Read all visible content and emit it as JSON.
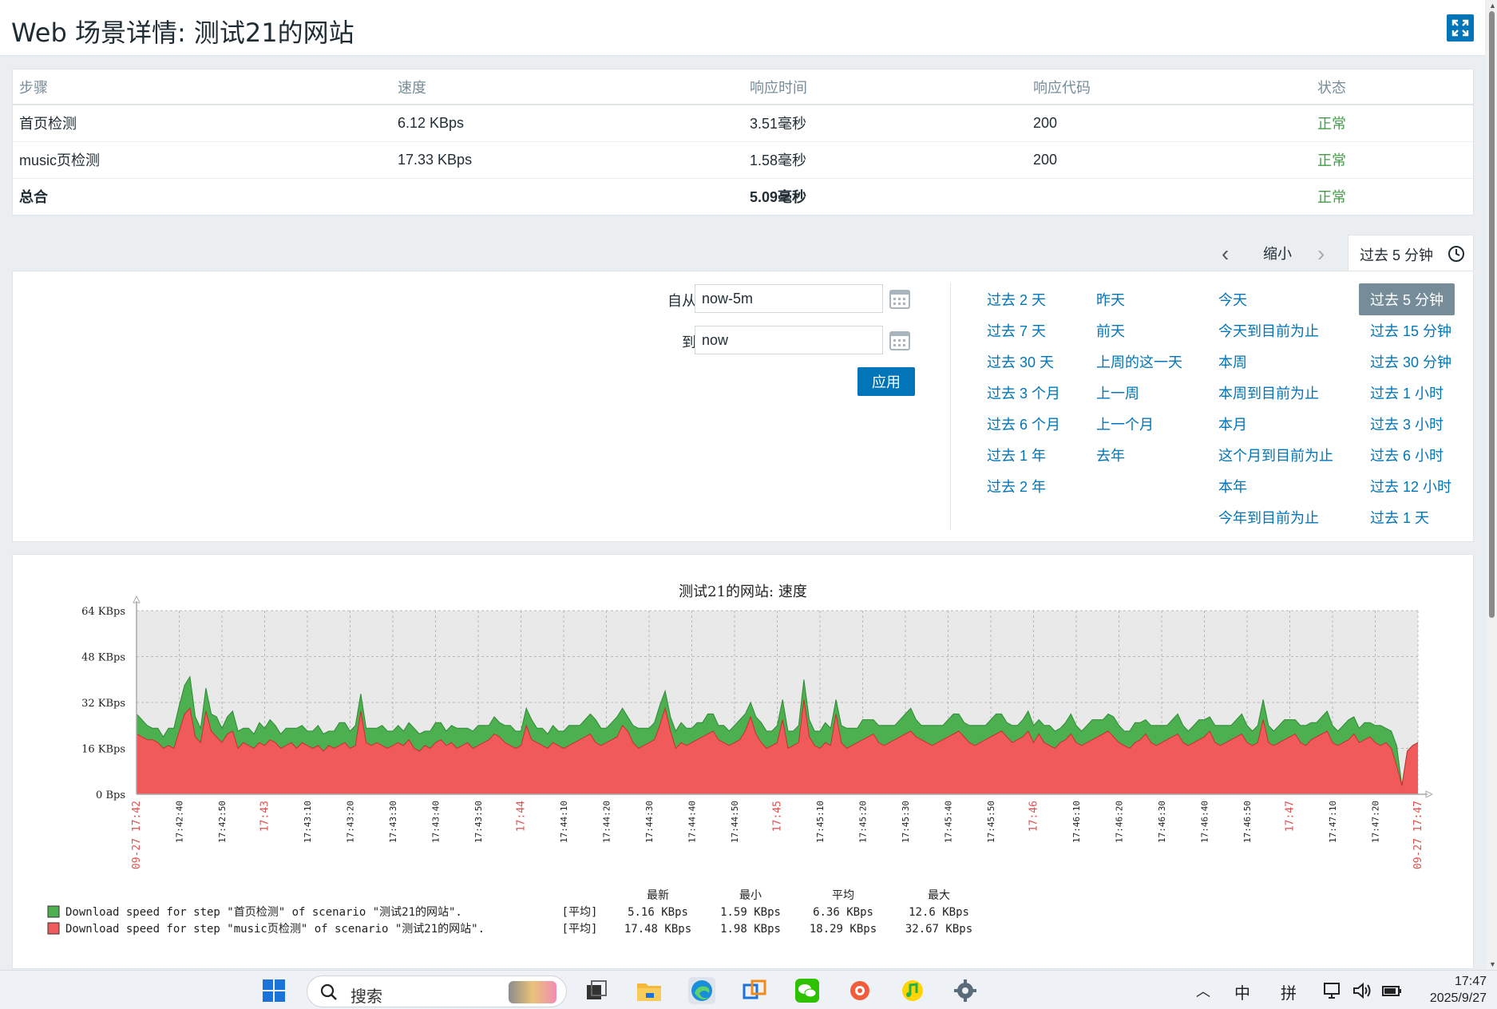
{
  "header": {
    "title": "Web 场景详情: 测试21的网站"
  },
  "steps_table": {
    "columns": [
      "步骤",
      "速度",
      "响应时间",
      "响应代码",
      "状态"
    ],
    "rows": [
      {
        "step": "首页检测",
        "speed": "6.12 KBps",
        "time": "3.51毫秒",
        "code": "200",
        "status": "正常"
      },
      {
        "step": "music页检测",
        "speed": "17.33 KBps",
        "time": "1.58毫秒",
        "code": "200",
        "status": "正常"
      }
    ],
    "total": {
      "step": "总合",
      "speed": "",
      "time": "5.09毫秒",
      "code": "",
      "status": "正常"
    }
  },
  "time_nav": {
    "zoom_out": "缩小",
    "current": "过去 5 分钟"
  },
  "filter": {
    "from_label": "自从",
    "from_value": "now-5m",
    "to_label": "到",
    "to_value": "now",
    "apply": "应用"
  },
  "quick_ranges": {
    "col1": [
      "过去 2 天",
      "过去 7 天",
      "过去 30 天",
      "过去 3 个月",
      "过去 6 个月",
      "过去 1 年",
      "过去 2 年"
    ],
    "col2": [
      "昨天",
      "前天",
      "上周的这一天",
      "上一周",
      "上一个月",
      "去年"
    ],
    "col3": [
      "今天",
      "今天到目前为止",
      "本周",
      "本周到目前为止",
      "本月",
      "这个月到目前为止",
      "本年",
      "今年到目前为止"
    ],
    "col4": [
      "过去 5 分钟",
      "过去 15 分钟",
      "过去 30 分钟",
      "过去 1 小时",
      "过去 3 小时",
      "过去 6 小时",
      "过去 12 小时",
      "过去 1 天"
    ],
    "selected": "过去 5 分钟"
  },
  "chart_data": {
    "type": "area",
    "title": "测试21的网站: 速度",
    "y_ticks": [
      "0 Bps",
      "16 KBps",
      "32 KBps",
      "48 KBps",
      "64 KBps"
    ],
    "ylim": [
      0,
      64
    ],
    "x_ticks": [
      "09-27 17:42",
      "17:42:40",
      "17:42:50",
      "17:43",
      "17:43:10",
      "17:43:20",
      "17:43:30",
      "17:43:40",
      "17:43:50",
      "17:44",
      "17:44:10",
      "17:44:20",
      "17:44:30",
      "17:44:40",
      "17:44:50",
      "17:45",
      "17:45:10",
      "17:45:20",
      "17:45:30",
      "17:45:40",
      "17:45:50",
      "17:46",
      "17:46:10",
      "17:46:20",
      "17:46:30",
      "17:46:40",
      "17:46:50",
      "17:47",
      "17:47:10",
      "17:47:20",
      "09-27 17:47"
    ],
    "x_ticks_highlight": [
      0,
      3,
      9,
      15,
      21,
      27,
      30
    ],
    "grid": true,
    "stacked": true,
    "series": [
      {
        "name": "Download speed for step \"首页检测\" of scenario \"测试21的网站\".",
        "color": "#4caf50",
        "values": [
          7,
          6,
          5,
          4,
          5,
          4,
          6,
          7,
          9,
          10,
          11,
          7,
          5,
          8,
          6,
          7,
          5,
          6,
          7,
          6,
          5,
          6,
          5,
          7,
          6,
          7,
          6,
          5,
          6,
          5,
          7,
          6,
          5,
          6,
          7,
          6,
          5,
          6,
          8,
          7,
          6,
          7,
          6,
          5,
          6,
          5,
          7,
          6,
          5,
          6,
          5,
          6,
          7,
          6,
          5,
          6,
          7,
          6,
          5,
          6,
          7,
          6,
          5,
          6,
          7,
          6,
          5,
          6,
          5,
          6,
          7,
          6,
          5,
          6,
          7,
          5,
          6,
          5,
          6,
          5,
          6,
          7,
          6,
          5,
          6,
          7,
          8,
          6,
          5,
          6,
          7,
          6,
          5,
          6,
          7,
          6,
          5,
          6,
          7,
          6,
          5,
          6,
          7,
          6,
          5,
          6,
          5,
          7,
          6,
          5,
          6,
          5,
          6,
          7,
          6,
          5,
          6,
          7,
          6,
          5,
          6,
          7,
          6,
          5,
          6,
          7,
          6,
          5,
          6,
          7,
          6,
          5,
          6,
          7,
          6,
          5,
          7,
          6,
          5,
          6,
          7,
          6,
          5,
          6,
          7,
          8,
          6,
          5,
          6,
          7,
          6,
          5,
          6,
          7,
          6,
          5,
          6,
          7,
          6,
          5,
          6,
          7,
          6,
          5,
          6,
          5,
          6,
          7,
          6,
          5,
          6,
          7,
          6,
          5,
          6,
          7,
          6,
          5,
          6,
          7,
          6,
          5,
          6,
          7,
          6,
          5,
          6,
          7,
          6,
          5,
          6,
          7,
          6,
          5,
          6,
          7,
          6,
          5,
          6,
          7,
          6,
          5,
          6,
          7,
          6,
          5,
          6,
          7,
          6,
          5,
          6,
          7,
          6,
          5,
          6,
          7,
          6,
          5,
          6,
          7,
          6,
          5,
          6,
          7,
          6,
          5,
          6,
          7,
          6,
          5,
          6,
          5,
          6,
          7,
          5,
          6,
          7
        ],
        "legend": {
          "func": "[平均]",
          "last": "5.16 KBps",
          "min": "1.59 KBps",
          "avg": "6.36 KBps",
          "max": "12.6 KBps"
        }
      },
      {
        "name": "Download speed for step \"music页检测\" of scenario \"测试21的网站\".",
        "color": "#f05a5a",
        "values": [
          21,
          20,
          19,
          19,
          18,
          16,
          17,
          16,
          22,
          28,
          30,
          20,
          18,
          29,
          22,
          20,
          18,
          21,
          22,
          16,
          18,
          17,
          16,
          18,
          17,
          19,
          18,
          16,
          17,
          18,
          16,
          18,
          17,
          16,
          17,
          15,
          17,
          16,
          17,
          18,
          16,
          17,
          29,
          18,
          17,
          18,
          17,
          16,
          17,
          18,
          17,
          19,
          16,
          15,
          17,
          16,
          18,
          19,
          17,
          18,
          16,
          17,
          18,
          16,
          17,
          18,
          19,
          21,
          20,
          18,
          17,
          16,
          17,
          24,
          19,
          18,
          17,
          16,
          18,
          17,
          16,
          17,
          18,
          19,
          20,
          21,
          18,
          17,
          18,
          19,
          20,
          24,
          22,
          18,
          16,
          17,
          18,
          19,
          24,
          30,
          22,
          16,
          18,
          17,
          18,
          19,
          20,
          21,
          22,
          19,
          18,
          17,
          18,
          19,
          22,
          27,
          21,
          18,
          16,
          17,
          18,
          26,
          16,
          17,
          18,
          33,
          20,
          17,
          16,
          18,
          17,
          28,
          18,
          16,
          17,
          18,
          19,
          20,
          21,
          18,
          17,
          18,
          19,
          20,
          21,
          22,
          20,
          19,
          18,
          17,
          18,
          19,
          20,
          21,
          22,
          20,
          18,
          17,
          18,
          19,
          20,
          21,
          22,
          20,
          18,
          19,
          20,
          22,
          18,
          21,
          18,
          17,
          16,
          18,
          19,
          21,
          18,
          17,
          18,
          19,
          20,
          21,
          22,
          20,
          18,
          17,
          16,
          18,
          19,
          21,
          18,
          17,
          18,
          19,
          20,
          21,
          18,
          17,
          18,
          19,
          20,
          22,
          18,
          17,
          18,
          19,
          20,
          21,
          18,
          17,
          18,
          26,
          18,
          17,
          18,
          19,
          20,
          21,
          18,
          17,
          19,
          20,
          21,
          22,
          18,
          17,
          18,
          19,
          21,
          18,
          19,
          20,
          18,
          17,
          18,
          16,
          10,
          3,
          15,
          17,
          18
        ],
        "legend": {
          "func": "[平均]",
          "last": "17.48 KBps",
          "min": "1.98 KBps",
          "avg": "18.29 KBps",
          "max": "32.67 KBps"
        }
      }
    ],
    "legend_headers": [
      "最新",
      "最小",
      "平均",
      "最大"
    ]
  },
  "taskbar": {
    "search_placeholder": "搜索",
    "tray_ime1": "中",
    "tray_ime2": "拼",
    "time": "17:47",
    "date": "2025/9/27"
  }
}
